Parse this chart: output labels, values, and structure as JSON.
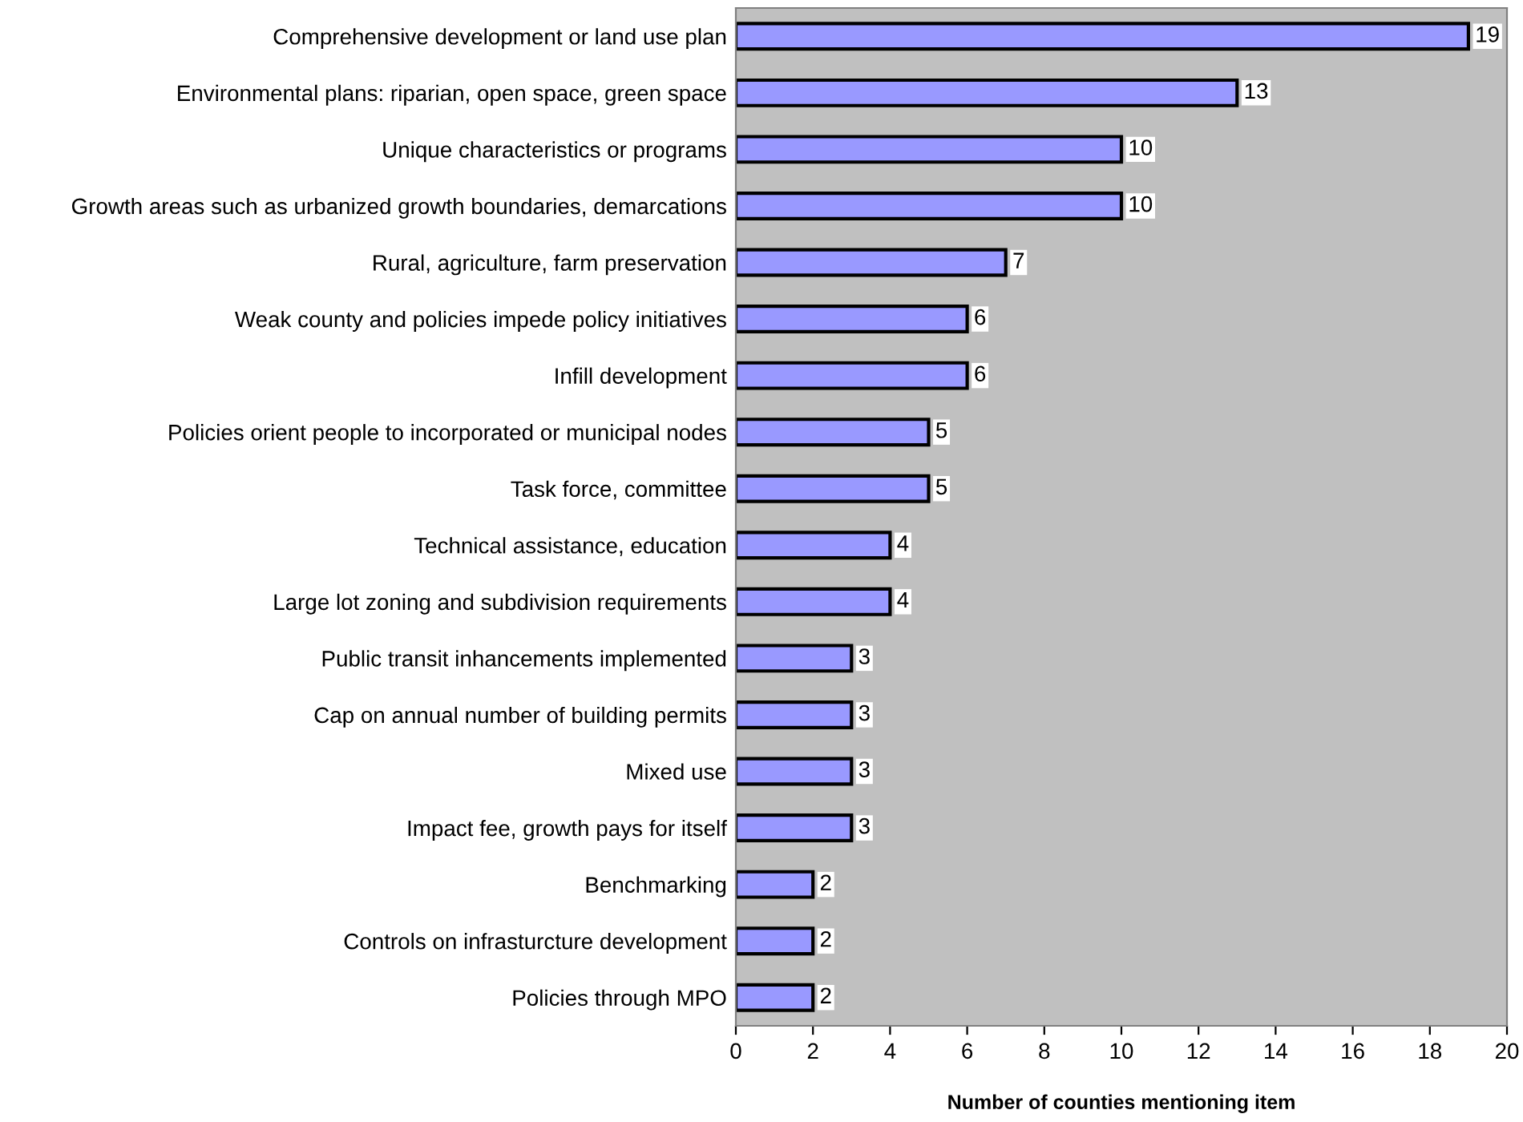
{
  "chart_data": {
    "type": "bar",
    "orientation": "horizontal",
    "xlabel": "Number of counties mentioning item",
    "categories": [
      "Comprehensive development or land use plan",
      "Environmental plans: riparian, open space, green space",
      "Unique characteristics or programs",
      "Growth areas such as urbanized growth boundaries, demarcations",
      "Rural, agriculture, farm preservation",
      "Weak county and policies impede policy initiatives",
      "Infill development",
      "Policies orient people to incorporated or municipal nodes",
      "Task force, committee",
      "Technical assistance, education",
      "Large lot zoning and subdivision requirements",
      "Public transit inhancements implemented",
      "Cap on annual number of building permits",
      "Mixed use",
      "Impact fee, growth pays for itself",
      "Benchmarking",
      "Controls on infrasturcture development",
      "Policies through MPO"
    ],
    "values": [
      19,
      13,
      10,
      10,
      7,
      6,
      6,
      5,
      5,
      4,
      4,
      3,
      3,
      3,
      3,
      2,
      2,
      2
    ],
    "color": "#9999ff",
    "xlim": [
      0,
      20
    ],
    "xticks": [
      0,
      2,
      4,
      6,
      8,
      10,
      12,
      14,
      16,
      18,
      20
    ],
    "grid": false,
    "legend": false,
    "data_labels": true
  }
}
